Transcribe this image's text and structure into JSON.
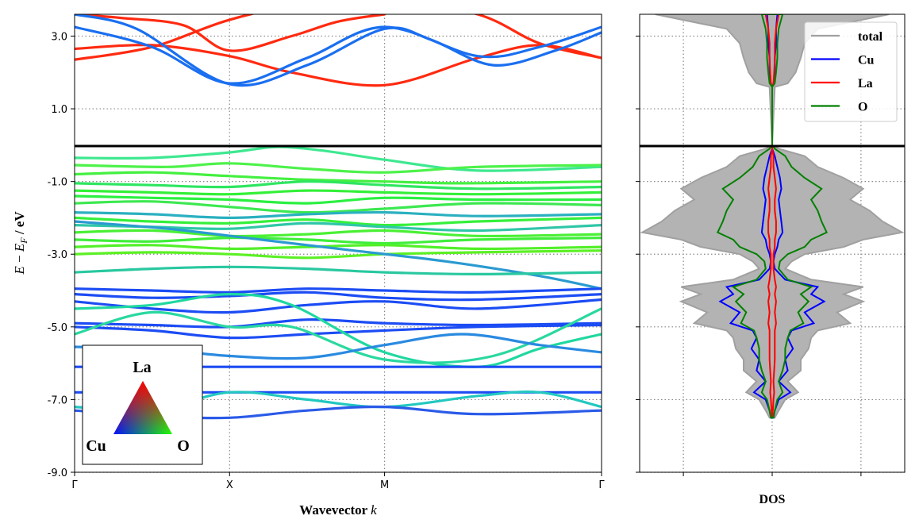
{
  "chart_data": [
    {
      "type": "line",
      "panel": "band structure",
      "xlabel": "Wavevector $k$",
      "ylabel": "$E - E_F$ / eV",
      "ylim": [
        -9.0,
        3.6
      ],
      "yticks": [
        3.0,
        1.0,
        -1.0,
        -3.0,
        -5.0,
        -7.0,
        -9.0
      ],
      "ytick_labels": [
        "3.0",
        "1.0",
        "-1.0",
        "-3.0",
        "-5.0",
        "-7.0",
        "-9.0"
      ],
      "kpath_labels": [
        "Γ",
        "X",
        "M",
        "Γ"
      ],
      "kpath_positions": [
        0,
        1,
        2,
        3.4
      ],
      "fermi_level": 0,
      "grid": true,
      "color_legend": {
        "top": "La",
        "left": "Cu",
        "right": "O"
      },
      "colors": {
        "Cu": "#1f4fff",
        "La": "#ff1a00",
        "O": "#22ff00",
        "mixed_cu_o": "#1ec8a0"
      },
      "series": [
        {
          "color": "#ff2a10",
          "x": [
            0,
            0.5,
            1,
            1.5,
            2,
            2.6,
            3,
            3.4
          ],
          "y": [
            2.35,
            2.7,
            3.45,
            3.9,
            4.0,
            3.6,
            2.8,
            2.4
          ]
        },
        {
          "color": "#ff2a10",
          "x": [
            0,
            0.5,
            1,
            1.4,
            2,
            2.6,
            3,
            3.4
          ],
          "y": [
            2.65,
            2.75,
            2.45,
            2.0,
            1.65,
            2.4,
            2.75,
            2.4
          ]
        },
        {
          "color": "#ff2a10",
          "x": [
            0,
            0.3,
            0.7,
            1,
            1.4,
            1.7,
            2
          ],
          "y": [
            3.6,
            3.5,
            3.3,
            2.6,
            3.0,
            3.4,
            3.6
          ]
        },
        {
          "color": "#1a6ff0",
          "x": [
            0,
            0.5,
            1,
            1.5,
            2,
            2.6,
            3,
            3.4
          ],
          "y": [
            3.25,
            2.7,
            1.7,
            2.4,
            3.25,
            2.45,
            2.7,
            3.25
          ]
        },
        {
          "color": "#1a6ff0",
          "x": [
            0,
            0.4,
            1,
            1.5,
            2,
            2.3,
            2.7,
            3.1,
            3.4
          ],
          "y": [
            3.6,
            3.2,
            1.68,
            2.2,
            3.2,
            2.9,
            2.2,
            2.6,
            3.1
          ]
        },
        {
          "color": "#3ee890",
          "x": [
            0,
            0.5,
            1,
            1.3,
            1.6,
            2,
            2.6,
            3.4
          ],
          "y": [
            -0.35,
            -0.35,
            -0.2,
            -0.05,
            -0.15,
            -0.4,
            -0.7,
            -0.6
          ]
        },
        {
          "color": "#4df24a",
          "x": [
            0,
            0.6,
            1,
            1.5,
            2,
            2.6,
            3.4
          ],
          "y": [
            -0.55,
            -0.6,
            -0.5,
            -0.65,
            -0.75,
            -0.6,
            -0.55
          ]
        },
        {
          "color": "#44f040",
          "x": [
            0,
            0.5,
            1,
            1.5,
            2,
            2.5,
            3.4
          ],
          "y": [
            -0.8,
            -0.75,
            -0.85,
            -0.95,
            -1.0,
            -1.05,
            -1.0
          ]
        },
        {
          "color": "#2ee660",
          "x": [
            0,
            0.5,
            1,
            1.5,
            2,
            2.6,
            3.4
          ],
          "y": [
            -1.05,
            -1.1,
            -1.15,
            -1.0,
            -1.1,
            -1.2,
            -1.15
          ]
        },
        {
          "color": "#33f038",
          "x": [
            0,
            0.5,
            1,
            1.5,
            2,
            2.6,
            3.4
          ],
          "y": [
            -1.25,
            -1.3,
            -1.35,
            -1.25,
            -1.3,
            -1.35,
            -1.3
          ]
        },
        {
          "color": "#2af040",
          "x": [
            0,
            0.5,
            1,
            1.5,
            2,
            2.6,
            3.4
          ],
          "y": [
            -1.4,
            -1.45,
            -1.5,
            -1.6,
            -1.45,
            -1.5,
            -1.5
          ]
        },
        {
          "color": "#3ce850",
          "x": [
            0,
            0.5,
            1,
            1.5,
            2,
            2.6,
            3.4
          ],
          "y": [
            -1.6,
            -1.55,
            -1.7,
            -1.85,
            -1.75,
            -1.6,
            -1.65
          ]
        },
        {
          "color": "#2ab0c0",
          "x": [
            0,
            0.5,
            1,
            1.5,
            2,
            2.6,
            3.4
          ],
          "y": [
            -1.85,
            -1.9,
            -2.0,
            -1.9,
            -1.85,
            -1.95,
            -1.9
          ]
        },
        {
          "color": "#36f03a",
          "x": [
            0,
            0.5,
            1,
            1.5,
            2,
            2.6,
            3.4
          ],
          "y": [
            -2.0,
            -2.1,
            -2.15,
            -2.05,
            -2.2,
            -2.1,
            -2.0
          ]
        },
        {
          "color": "#2fc6a8",
          "x": [
            0,
            0.5,
            1,
            1.5,
            2,
            2.6,
            3.4
          ],
          "y": [
            -2.2,
            -2.25,
            -2.3,
            -2.15,
            -2.25,
            -2.35,
            -2.2
          ]
        },
        {
          "color": "#4af034",
          "x": [
            0,
            0.5,
            1,
            1.5,
            2,
            2.6,
            3.4
          ],
          "y": [
            -2.4,
            -2.35,
            -2.5,
            -2.45,
            -2.35,
            -2.5,
            -2.45
          ]
        },
        {
          "color": "#40ee3c",
          "x": [
            0,
            0.5,
            1,
            1.5,
            2,
            2.6,
            3.4
          ],
          "y": [
            -2.6,
            -2.65,
            -2.55,
            -2.6,
            -2.7,
            -2.6,
            -2.55
          ]
        },
        {
          "color": "#52f028",
          "x": [
            0,
            0.5,
            1,
            1.5,
            2,
            2.6,
            3.4
          ],
          "y": [
            -2.8,
            -2.75,
            -2.85,
            -2.8,
            -2.75,
            -2.85,
            -2.8
          ]
        },
        {
          "color": "#5cf024",
          "x": [
            0,
            0.5,
            1,
            1.5,
            2,
            2.6,
            3.4
          ],
          "y": [
            -3.0,
            -2.95,
            -3.0,
            -3.1,
            -3.0,
            -2.95,
            -2.9
          ]
        },
        {
          "color": "#2a9ad0",
          "x": [
            0,
            0.6,
            1.2,
            1.8,
            2.4,
            3,
            3.4
          ],
          "y": [
            -2.1,
            -2.3,
            -2.6,
            -2.9,
            -3.2,
            -3.6,
            -3.95
          ]
        },
        {
          "color": "#29c8a0",
          "x": [
            0,
            0.5,
            1,
            1.5,
            2,
            2.6,
            3.4
          ],
          "y": [
            -3.5,
            -3.4,
            -3.35,
            -3.4,
            -3.5,
            -3.55,
            -3.5
          ]
        },
        {
          "color": "#1c4cf4",
          "x": [
            0,
            0.5,
            1,
            1.5,
            2,
            2.6,
            3.4
          ],
          "y": [
            -3.95,
            -4.0,
            -4.05,
            -3.95,
            -4.0,
            -4.05,
            -3.95
          ]
        },
        {
          "color": "#1c4cf4",
          "x": [
            0,
            0.5,
            1,
            1.5,
            2,
            2.6,
            3.4
          ],
          "y": [
            -4.1,
            -4.2,
            -4.15,
            -4.05,
            -4.2,
            -4.25,
            -4.1
          ]
        },
        {
          "color": "#1c4cf4",
          "x": [
            0,
            0.5,
            1,
            1.5,
            2,
            2.6,
            3.4
          ],
          "y": [
            -4.3,
            -4.5,
            -4.6,
            -4.4,
            -4.3,
            -4.5,
            -4.25
          ]
        },
        {
          "color": "#1c4cf4",
          "x": [
            0,
            0.5,
            1,
            1.5,
            2,
            2.6,
            3.4
          ],
          "y": [
            -4.9,
            -4.95,
            -5.0,
            -4.8,
            -4.9,
            -4.95,
            -4.9
          ]
        },
        {
          "color": "#1c4cf4",
          "x": [
            0,
            0.5,
            1,
            1.5,
            2,
            2.6,
            3.4
          ],
          "y": [
            -5.0,
            -5.1,
            -5.3,
            -5.2,
            -5.1,
            -5.0,
            -4.95
          ]
        },
        {
          "color": "#20d8a0",
          "x": [
            0,
            0.5,
            1,
            1.4,
            2,
            2.6,
            3,
            3.4
          ],
          "y": [
            -4.5,
            -4.4,
            -4.1,
            -4.4,
            -5.7,
            -6.1,
            -5.6,
            -5.2
          ]
        },
        {
          "color": "#2ad8a0",
          "x": [
            0,
            0.5,
            1,
            1.4,
            2,
            2.7,
            3.4
          ],
          "y": [
            -5.2,
            -4.6,
            -5.0,
            -5.0,
            -5.9,
            -5.8,
            -4.5
          ]
        },
        {
          "color": "#2a8ae0",
          "x": [
            0,
            0.5,
            1,
            1.5,
            2,
            2.5,
            3,
            3.4
          ],
          "y": [
            -5.55,
            -5.6,
            -5.8,
            -5.85,
            -5.5,
            -5.2,
            -5.5,
            -5.7
          ]
        },
        {
          "color": "#1c4cf4",
          "x": [
            0,
            0.5,
            1,
            1.5,
            2,
            2.6,
            3.4
          ],
          "y": [
            -6.1,
            -6.1,
            -6.1,
            -6.1,
            -6.1,
            -6.1,
            -6.1
          ]
        },
        {
          "color": "#1c4cf4",
          "x": [
            0,
            0.5,
            1,
            1.5,
            2,
            2.6,
            3.4
          ],
          "y": [
            -6.8,
            -6.8,
            -6.8,
            -6.8,
            -6.8,
            -6.8,
            -6.8
          ]
        },
        {
          "color": "#22c8c0",
          "x": [
            0,
            0.5,
            1,
            1.5,
            2,
            2.6,
            3,
            3.4
          ],
          "y": [
            -7.2,
            -7.3,
            -6.8,
            -7.0,
            -7.2,
            -6.9,
            -6.8,
            -7.2
          ]
        },
        {
          "color": "#2a5ae8",
          "x": [
            0,
            0.5,
            1,
            1.5,
            2,
            2.6,
            3.4
          ],
          "y": [
            -7.3,
            -7.45,
            -7.5,
            -7.3,
            -7.2,
            -7.4,
            -7.3
          ]
        }
      ]
    },
    {
      "type": "area",
      "panel": "density of states",
      "xlabel": "DOS",
      "ylim": [
        -9.0,
        3.6
      ],
      "grid": true,
      "legend_position": "top-right",
      "colors": {
        "total": "#a0a0a0",
        "Cu": "#0000ff",
        "La": "#ff0000",
        "O": "#008000"
      },
      "energies": [
        3.6,
        3.2,
        2.8,
        2.4,
        2.0,
        1.7,
        1.6,
        0,
        -0.1,
        -0.3,
        -0.6,
        -0.9,
        -1.2,
        -1.5,
        -1.8,
        -2.1,
        -2.4,
        -2.6,
        -2.8,
        -3.0,
        -3.2,
        -3.4,
        -3.7,
        -3.9,
        -4.1,
        -4.3,
        -4.6,
        -4.9,
        -5.1,
        -5.3,
        -5.6,
        -5.9,
        -6.2,
        -6.5,
        -6.8,
        -7.0,
        -7.3,
        -7.5
      ],
      "series": [
        {
          "name": "total",
          "values": [
            0.9,
            0.35,
            0.25,
            0.22,
            0.18,
            0.12,
            0.02,
            0,
            0.05,
            0.25,
            0.35,
            0.55,
            0.7,
            0.6,
            0.75,
            0.85,
            1.0,
            0.7,
            0.55,
            0.25,
            0.15,
            0.1,
            0.3,
            0.7,
            0.55,
            0.7,
            0.5,
            0.6,
            0.35,
            0.3,
            0.28,
            0.22,
            0.22,
            0.12,
            0.2,
            0.1,
            0.05,
            0.02
          ]
        },
        {
          "name": "Cu",
          "values": [
            0.04,
            0.03,
            0.03,
            0.02,
            0.02,
            0.01,
            0.0,
            0,
            0.0,
            0.02,
            0.04,
            0.06,
            0.07,
            0.05,
            0.06,
            0.07,
            0.08,
            0.05,
            0.04,
            0.02,
            0.01,
            0.02,
            0.1,
            0.35,
            0.3,
            0.4,
            0.25,
            0.32,
            0.15,
            0.12,
            0.16,
            0.1,
            0.12,
            0.05,
            0.14,
            0.05,
            0.02,
            0.01
          ]
        },
        {
          "name": "La",
          "values": [
            0.05,
            0.03,
            0.02,
            0.02,
            0.015,
            0.01,
            0.0,
            0,
            0.0,
            0.01,
            0.01,
            0.02,
            0.03,
            0.02,
            0.02,
            0.03,
            0.03,
            0.02,
            0.02,
            0.01,
            0.01,
            0.01,
            0.02,
            0.03,
            0.02,
            0.03,
            0.02,
            0.03,
            0.02,
            0.02,
            0.02,
            0.02,
            0.015,
            0.01,
            0.015,
            0.01,
            0.005,
            0.0
          ]
        },
        {
          "name": "O",
          "values": [
            0.08,
            0.05,
            0.04,
            0.04,
            0.03,
            0.02,
            0.0,
            0,
            0.02,
            0.1,
            0.15,
            0.25,
            0.38,
            0.3,
            0.35,
            0.38,
            0.42,
            0.3,
            0.25,
            0.12,
            0.06,
            0.05,
            0.12,
            0.3,
            0.22,
            0.28,
            0.2,
            0.24,
            0.14,
            0.12,
            0.1,
            0.1,
            0.08,
            0.05,
            0.08,
            0.04,
            0.02,
            0.01
          ]
        }
      ]
    }
  ]
}
